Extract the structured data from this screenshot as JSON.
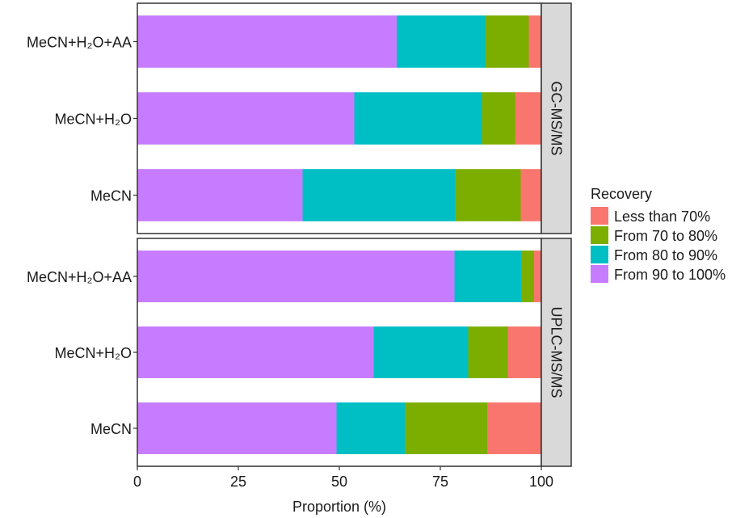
{
  "chart_data": {
    "type": "bar",
    "orientation": "horizontal",
    "stacked": true,
    "xlabel": "Proportion (%)",
    "xlim": [
      0,
      100
    ],
    "xticks": [
      "0",
      "25",
      "50",
      "75",
      "100"
    ],
    "legend": {
      "title": "Recovery",
      "placement": "right",
      "entries": [
        "Less than 70%",
        "From 70 to 80%",
        "From 80 to 90%",
        "From 90 to 100%"
      ]
    },
    "series_colors": {
      "From 90 to 100%": "#C77CFF",
      "From 80 to 90%": "#00BFC4",
      "From 70 to 80%": "#7CAE00",
      "Less than 70%": "#F8766D"
    },
    "stack_order": [
      "From 90 to 100%",
      "From 80 to 90%",
      "From 70 to 80%",
      "Less than 70%"
    ],
    "panels": [
      {
        "strip": "GC-MS/MS",
        "categories": [
          "MeCN+H₂O+AA",
          "MeCN+H₂O",
          "MeCN"
        ],
        "series": [
          {
            "name": "From 90 to 100%",
            "values": [
              64.2,
              53.7,
              40.9
            ]
          },
          {
            "name": "From 80 to 90%",
            "values": [
              21.9,
              31.6,
              37.7
            ]
          },
          {
            "name": "From 70 to 80%",
            "values": [
              10.8,
              8.2,
              16.3
            ]
          },
          {
            "name": "Less than 70%",
            "values": [
              3.1,
              6.5,
              5.1
            ]
          }
        ]
      },
      {
        "strip": "UPLC-MS/MS",
        "categories": [
          "MeCN+H₂O+AA",
          "MeCN+H₂O",
          "MeCN"
        ],
        "series": [
          {
            "name": "From 90 to 100%",
            "values": [
              78.5,
              58.5,
              49.3
            ]
          },
          {
            "name": "From 80 to 90%",
            "values": [
              16.6,
              23.4,
              16.9
            ]
          },
          {
            "name": "From 70 to 80%",
            "values": [
              3.1,
              9.8,
              20.4
            ]
          },
          {
            "name": "Less than 70%",
            "values": [
              1.8,
              8.3,
              13.4
            ]
          }
        ]
      }
    ]
  }
}
